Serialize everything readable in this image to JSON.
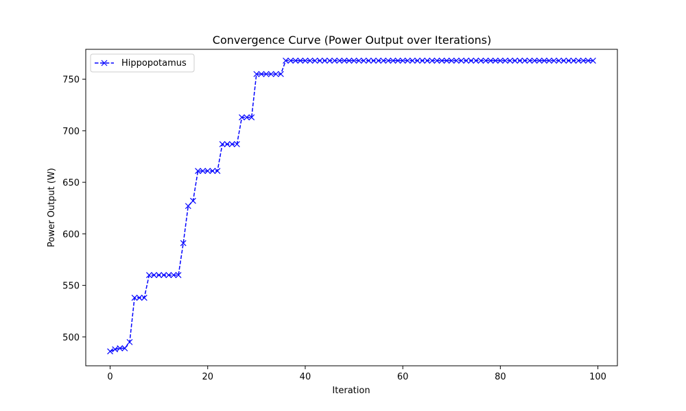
{
  "chart_data": {
    "type": "line",
    "title": "Convergence Curve (Power Output over Iterations)",
    "xlabel": "Iteration",
    "ylabel": "Power Output (W)",
    "xlim": [
      -5,
      104
    ],
    "ylim": [
      472,
      779
    ],
    "xticks": [
      0,
      20,
      40,
      60,
      80,
      100
    ],
    "yticks": [
      500,
      550,
      600,
      650,
      700,
      750
    ],
    "grid": false,
    "legend_position": "upper-left",
    "series": [
      {
        "name": "Hippopotamus",
        "color": "#0000ff",
        "line_style": "dashed",
        "marker": "x",
        "x": [
          0,
          1,
          2,
          3,
          4,
          5,
          6,
          7,
          8,
          9,
          10,
          11,
          12,
          13,
          14,
          15,
          16,
          17,
          18,
          19,
          20,
          21,
          22,
          23,
          24,
          25,
          26,
          27,
          28,
          29,
          30,
          31,
          32,
          33,
          34,
          35,
          36,
          37,
          38,
          39,
          40,
          41,
          42,
          43,
          44,
          45,
          46,
          47,
          48,
          49,
          50,
          51,
          52,
          53,
          54,
          55,
          56,
          57,
          58,
          59,
          60,
          61,
          62,
          63,
          64,
          65,
          66,
          67,
          68,
          69,
          70,
          71,
          72,
          73,
          74,
          75,
          76,
          77,
          78,
          79,
          80,
          81,
          82,
          83,
          84,
          85,
          86,
          87,
          88,
          89,
          90,
          91,
          92,
          93,
          94,
          95,
          96,
          97,
          98,
          99
        ],
        "y": [
          486,
          488,
          489,
          489,
          495,
          538,
          538,
          538,
          560,
          560,
          560,
          560,
          560,
          560,
          560,
          591,
          627,
          632,
          661,
          661,
          661,
          661,
          661,
          687,
          687,
          687,
          687,
          713,
          713,
          713,
          755,
          755,
          755,
          755,
          755,
          755,
          768,
          768,
          768,
          768,
          768,
          768,
          768,
          768,
          768,
          768,
          768,
          768,
          768,
          768,
          768,
          768,
          768,
          768,
          768,
          768,
          768,
          768,
          768,
          768,
          768,
          768,
          768,
          768,
          768,
          768,
          768,
          768,
          768,
          768,
          768,
          768,
          768,
          768,
          768,
          768,
          768,
          768,
          768,
          768,
          768,
          768,
          768,
          768,
          768,
          768,
          768,
          768,
          768,
          768,
          768,
          768,
          768,
          768,
          768,
          768,
          768,
          768,
          768,
          768
        ]
      }
    ]
  }
}
